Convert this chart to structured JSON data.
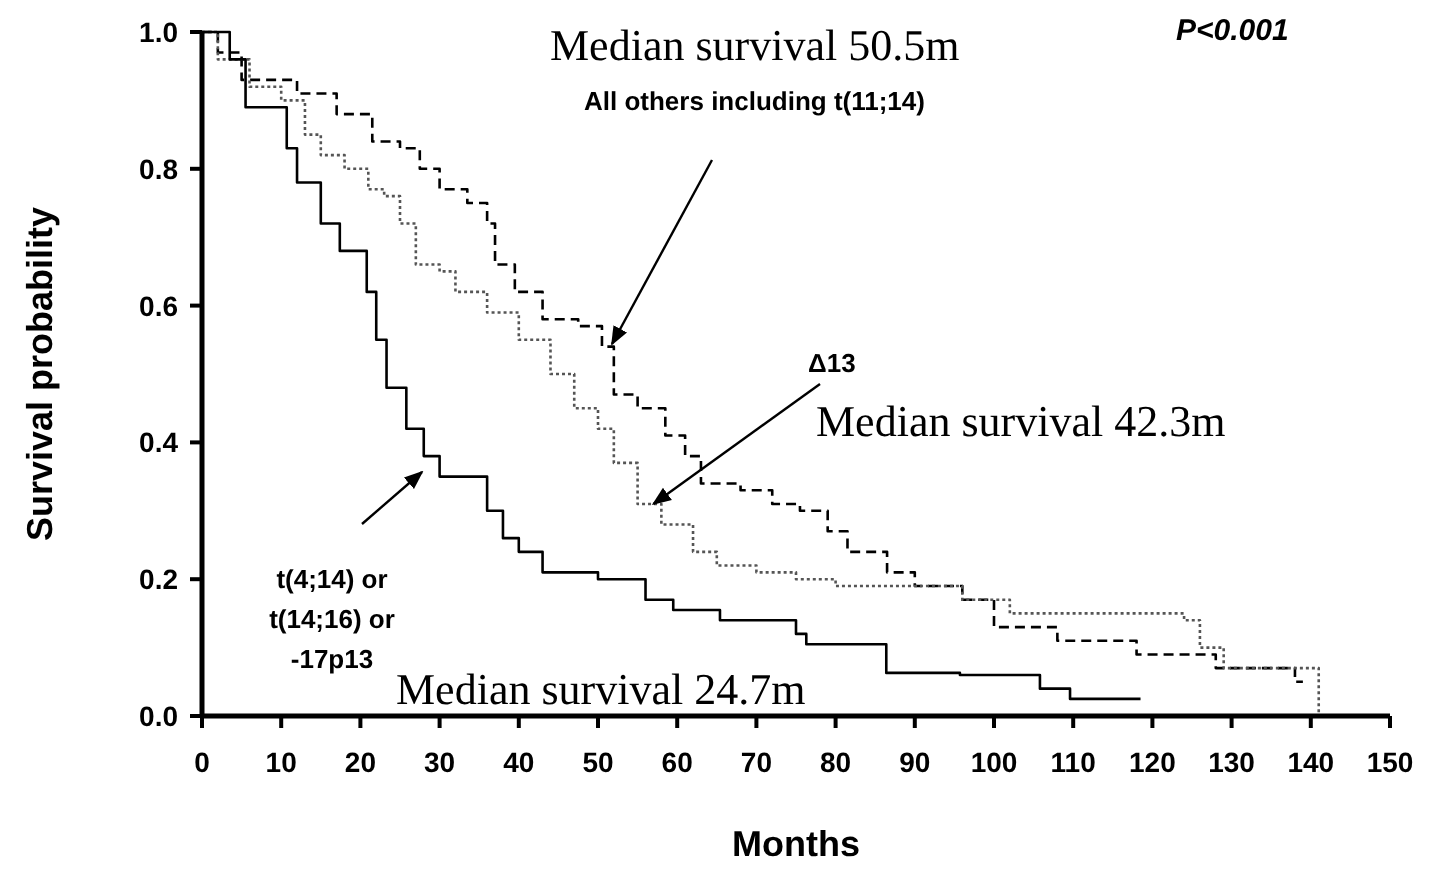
{
  "chart_data": {
    "type": "step",
    "xlabel": "Months",
    "ylabel": "Survival probability",
    "xlim": [
      0,
      150
    ],
    "xticks": [
      0,
      10,
      20,
      30,
      40,
      50,
      60,
      70,
      80,
      90,
      100,
      110,
      120,
      130,
      140,
      150
    ],
    "ylim": [
      0,
      1
    ],
    "yticks": [
      {
        "value": 0,
        "label": "0.0"
      },
      {
        "value": 0.2,
        "label": "0.2"
      },
      {
        "value": 0.4,
        "label": "0.4"
      },
      {
        "value": 0.6,
        "label": "0.6"
      },
      {
        "value": 0.8,
        "label": "0.8"
      },
      {
        "value": 1,
        "label": "1.0"
      }
    ],
    "grid": false,
    "series": [
      {
        "color": "#000000",
        "line_style": "dashed",
        "x": [
          0,
          2,
          5,
          12,
          17,
          21.5,
          25,
          27.5,
          30,
          33.5,
          36,
          37,
          39.5,
          43,
          47.5,
          50.5,
          52,
          55,
          58.5,
          61,
          63,
          68,
          72,
          75.5,
          79,
          81.5,
          86.5,
          90,
          96,
          100,
          108,
          118,
          128,
          138,
          139
        ],
        "values": [
          1,
          0.97,
          0.93,
          0.91,
          0.88,
          0.84,
          0.83,
          0.8,
          0.77,
          0.75,
          0.72,
          0.66,
          0.62,
          0.58,
          0.57,
          0.54,
          0.47,
          0.45,
          0.41,
          0.38,
          0.34,
          0.33,
          0.31,
          0.3,
          0.27,
          0.24,
          0.21,
          0.19,
          0.17,
          0.13,
          0.11,
          0.09,
          0.07,
          0.05,
          0.05
        ]
      },
      {
        "color": "#555555",
        "line_style": "dotted",
        "x": [
          0,
          2,
          6,
          10,
          13,
          15,
          18,
          21,
          23,
          25,
          27,
          30,
          32,
          36,
          40,
          44,
          47,
          50,
          52,
          55,
          58,
          62,
          65,
          70,
          75,
          80,
          96,
          102,
          124,
          126,
          129,
          141,
          141
        ],
        "values": [
          1,
          0.96,
          0.92,
          0.9,
          0.85,
          0.82,
          0.8,
          0.77,
          0.76,
          0.72,
          0.66,
          0.65,
          0.62,
          0.59,
          0.55,
          0.5,
          0.45,
          0.42,
          0.37,
          0.31,
          0.28,
          0.24,
          0.22,
          0.21,
          0.2,
          0.19,
          0.17,
          0.15,
          0.14,
          0.1,
          0.07,
          0.07,
          0
        ]
      },
      {
        "color": "#000000",
        "line_style": "solid",
        "x": [
          0,
          3.5,
          5.5,
          10.7,
          12,
          15,
          17.4,
          20.8,
          22,
          23.3,
          25.8,
          28,
          30,
          31.7,
          36,
          38,
          40,
          43,
          44.4,
          50,
          56,
          59.5,
          65.4,
          75,
          76.3,
          86.4,
          95.7,
          105.8,
          109.6,
          118.5
        ],
        "values": [
          1,
          0.96,
          0.89,
          0.83,
          0.78,
          0.72,
          0.68,
          0.62,
          0.55,
          0.48,
          0.42,
          0.38,
          0.35,
          0.35,
          0.3,
          0.26,
          0.24,
          0.21,
          0.21,
          0.2,
          0.17,
          0.155,
          0.14,
          0.12,
          0.105,
          0.063,
          0.06,
          0.04,
          0.025,
          0.025
        ]
      }
    ],
    "annotations": [
      "Median survival 50.5m",
      "P<0.001",
      "All others including t(11;14)",
      {
        "text": "Δ13",
        "x": 57,
        "y": 0.31
      },
      "Median survival 42.3m",
      "t(4;14) or\nt(14;16) or\n-17p13",
      "Median survival 24.7m"
    ]
  }
}
